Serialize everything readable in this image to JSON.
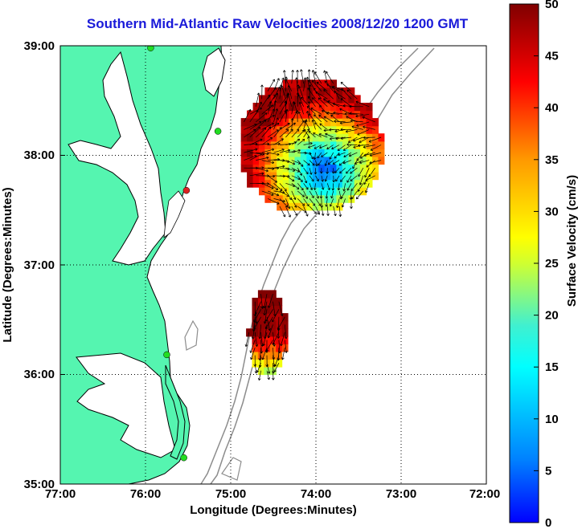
{
  "title": "Southern Mid-Atlantic Raw Velocities 2008/12/20 1200 GMT",
  "map": {
    "xlabel": "Longitude (Degrees:Minutes)",
    "ylabel": "Latitude (Degrees:Minutes)",
    "lon_range": [
      -77,
      -72
    ],
    "lat_range": [
      35,
      39
    ],
    "x_ticks": [
      "77:00",
      "76:00",
      "75:00",
      "74:00",
      "73:00",
      "72:00"
    ],
    "y_ticks": [
      "35:00",
      "36:00",
      "37:00",
      "38:00",
      "39:00"
    ],
    "grid": "dotted",
    "land_color": "#55f5b0",
    "coastline_color": "#000000",
    "isobath_color": "#8c8c8c"
  },
  "stations": [
    {
      "lon": -75.94,
      "lat": 38.98,
      "color": "#22dd22"
    },
    {
      "lon": -75.15,
      "lat": 38.22,
      "color": "#22dd22"
    },
    {
      "lon": -75.52,
      "lat": 37.68,
      "color": "#dd2222"
    },
    {
      "lon": -75.75,
      "lat": 36.18,
      "color": "#22dd22"
    },
    {
      "lon": -75.55,
      "lat": 35.24,
      "color": "#22dd22"
    }
  ],
  "colorbar": {
    "label": "Surface Velocity (cm/s)",
    "min": 0,
    "max": 50,
    "ticks": [
      "0",
      "5",
      "10",
      "15",
      "20",
      "25",
      "30",
      "35",
      "40",
      "45",
      "50"
    ],
    "colormap": "jet"
  },
  "velocity_fields": [
    {
      "name": "north",
      "center_lon": -74.1,
      "center_lat": 38.05,
      "radius_lon": 0.85,
      "radius_lat": 0.62,
      "speed_low": 8,
      "speed_high": 48
    },
    {
      "name": "south",
      "center_lon": -74.6,
      "center_lat": 36.35,
      "radius_lon": 0.22,
      "radius_lat": 0.42,
      "speed_low": 22,
      "speed_high": 49
    }
  ]
}
